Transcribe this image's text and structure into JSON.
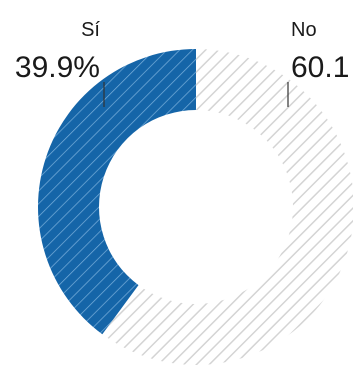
{
  "chart_data": {
    "type": "pie",
    "variant": "donut",
    "title": "",
    "slices": [
      {
        "label": "Sí",
        "value": 39.9,
        "value_label": "39.9%",
        "color": "#1565a8",
        "hatch_color": "#7ab0dc",
        "label_side": "left"
      },
      {
        "label": "No",
        "value": 60.1,
        "value_label": "60.1",
        "color": "#ffffff",
        "hatch_color": "#d4d4d4",
        "label_side": "right"
      }
    ],
    "start": "12 o'clock",
    "direction": "counterclockwise for Sí, clockwise for No"
  }
}
